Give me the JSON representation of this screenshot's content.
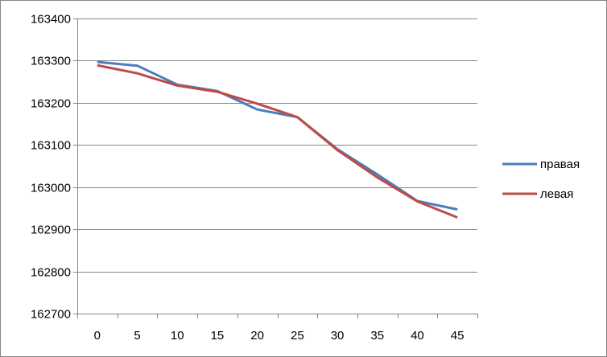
{
  "chart_data": {
    "type": "line",
    "x": [
      0,
      5,
      10,
      15,
      20,
      25,
      30,
      35,
      40,
      45
    ],
    "ylim": [
      162700,
      163400
    ],
    "yticks": [
      162700,
      162800,
      162900,
      163000,
      163100,
      163200,
      163300,
      163400
    ],
    "grid": true,
    "legend": "right",
    "series": [
      {
        "name": "правая",
        "color": "#4a7ebb",
        "values": [
          163297,
          163288,
          163243,
          163228,
          163184,
          163166,
          163090,
          163030,
          162967,
          162947
        ]
      },
      {
        "name": "левая",
        "color": "#be4b48",
        "values": [
          163289,
          163270,
          163241,
          163226,
          163198,
          163166,
          163088,
          163023,
          162966,
          162928
        ]
      }
    ]
  }
}
